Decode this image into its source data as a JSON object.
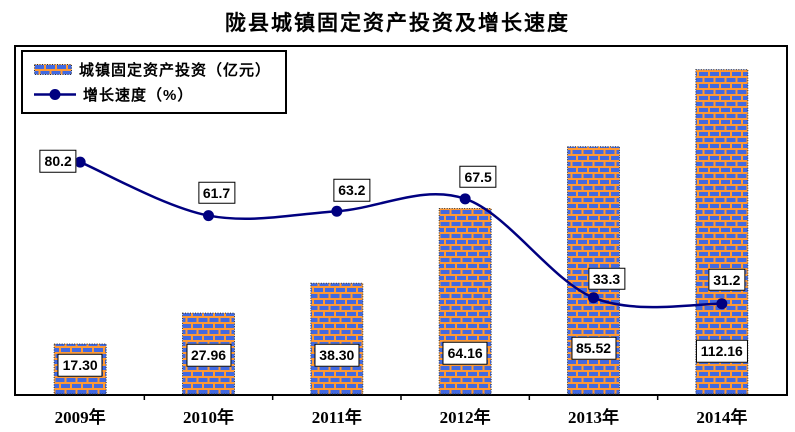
{
  "chart_data": {
    "type": "combo",
    "title": "陇县城镇固定资产投资及增长速度",
    "categories": [
      "2009年",
      "2010年",
      "2011年",
      "2012年",
      "2013年",
      "2014年"
    ],
    "series": [
      {
        "name": "城镇固定资产投资（亿元）",
        "type": "bar",
        "values": [
          17.3,
          27.96,
          38.3,
          64.16,
          85.52,
          112.16
        ],
        "labels": [
          "17.30",
          "27.96",
          "38.30",
          "64.16",
          "85.52",
          "112.16"
        ]
      },
      {
        "name": "增长速度（%）",
        "type": "line",
        "values": [
          80.2,
          61.7,
          63.2,
          67.5,
          33.3,
          31.2
        ],
        "labels": [
          "80.2",
          "61.7",
          "63.2",
          "67.5",
          "33.3",
          "31.2"
        ]
      }
    ],
    "ylim": [
      0,
      120
    ],
    "grid": false,
    "legend_position": "top-left",
    "colors": {
      "brick_fill": "#4169E1",
      "brick_mortar": "#FF9933",
      "line": "#000080",
      "label_box_bg": "#FFFFFF",
      "label_box_border": "#000000",
      "axis": "#000000"
    }
  }
}
